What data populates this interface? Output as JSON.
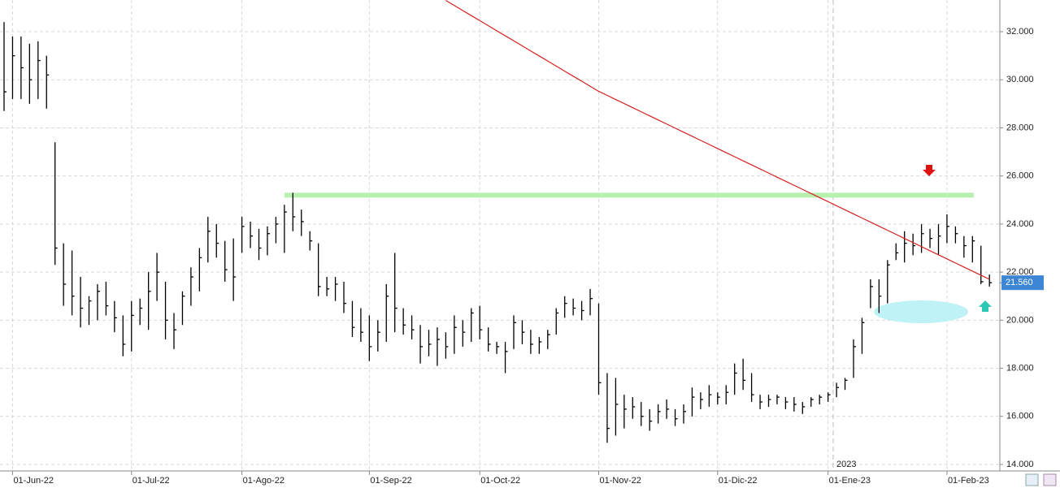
{
  "chart_data": {
    "type": "ohlc",
    "categories": [
      null,
      "01-Jun-22",
      null,
      null,
      null,
      null,
      null,
      null,
      null,
      null,
      null,
      null,
      null,
      null,
      null,
      "01-Jul-22",
      null,
      null,
      null,
      null,
      null,
      null,
      null,
      null,
      null,
      null,
      null,
      null,
      "01-Ago-22",
      null,
      null,
      null,
      null,
      null,
      null,
      null,
      null,
      null,
      null,
      null,
      null,
      null,
      null,
      "01-Sep-22",
      null,
      null,
      null,
      null,
      null,
      null,
      null,
      null,
      null,
      null,
      null,
      null,
      "01-Oct-22",
      null,
      null,
      null,
      null,
      null,
      null,
      null,
      null,
      null,
      null,
      null,
      null,
      null,
      "01-Nov-22",
      null,
      null,
      null,
      null,
      null,
      null,
      null,
      null,
      null,
      null,
      null,
      null,
      null,
      "01-Dic-22",
      null,
      null,
      null,
      null,
      null,
      null,
      null,
      null,
      null,
      null,
      null,
      null,
      "01-Ene-23",
      null,
      null,
      null,
      null,
      null,
      null,
      null,
      null,
      null,
      null,
      null,
      null,
      null,
      "01-Feb-23",
      null,
      null,
      null,
      null,
      null
    ],
    "high": [
      32400,
      31800,
      31800,
      31500,
      31600,
      31000,
      27400,
      23200,
      22900,
      21800,
      21000,
      21500,
      21600,
      20800,
      20200,
      20800,
      20900,
      22000,
      22800,
      21600,
      20300,
      21200,
      22200,
      23000,
      24300,
      24000,
      23300,
      23400,
      24300,
      24100,
      23800,
      23900,
      24300,
      24800,
      25300,
      24600,
      23700,
      23200,
      21800,
      21800,
      21600,
      20800,
      20500,
      20200,
      20000,
      21500,
      22800,
      20500,
      20200,
      19800,
      19600,
      19700,
      19500,
      20200,
      20000,
      20500,
      20600,
      19700,
      19100,
      19100,
      20200,
      20000,
      19600,
      19300,
      19600,
      20500,
      21000,
      20900,
      20800,
      21300,
      20700,
      17800,
      17600,
      16900,
      16800,
      16600,
      16300,
      16500,
      16700,
      16300,
      16500,
      17200,
      17000,
      17300,
      17000,
      17300,
      18200,
      18400,
      17800,
      16900,
      16900,
      16900,
      16800,
      16800,
      16600,
      16800,
      16900,
      17000,
      17400,
      17600,
      19200,
      20100,
      21700,
      21700,
      22500,
      23200,
      23700,
      23600,
      24000,
      23800,
      24000,
      24400,
      23900,
      23500,
      23500,
      23100,
      21900
    ],
    "low": [
      28700,
      29200,
      29200,
      29000,
      29200,
      28800,
      22300,
      20600,
      20200,
      19700,
      19800,
      20000,
      20200,
      19500,
      18500,
      18700,
      19800,
      19600,
      20800,
      19200,
      18800,
      19800,
      20600,
      21200,
      22400,
      22600,
      21600,
      20800,
      22800,
      23000,
      22500,
      22700,
      23200,
      22800,
      23700,
      23500,
      22900,
      21000,
      21000,
      20800,
      20300,
      19300,
      19100,
      18300,
      18700,
      19100,
      19500,
      19400,
      19200,
      18200,
      18500,
      18100,
      18400,
      18600,
      18900,
      19100,
      19200,
      18700,
      18600,
      17800,
      18800,
      19000,
      18600,
      18600,
      18800,
      19400,
      20100,
      20200,
      20000,
      20200,
      16900,
      14900,
      15200,
      15500,
      15900,
      15600,
      15400,
      15700,
      15900,
      15600,
      15700,
      16000,
      16300,
      16400,
      16500,
      16500,
      16900,
      17100,
      16600,
      16300,
      16400,
      16500,
      16300,
      16200,
      16100,
      16400,
      16500,
      16600,
      16800,
      17100,
      17600,
      18600,
      20500,
      20300,
      20700,
      22500,
      22400,
      22700,
      22800,
      23000,
      22700,
      23200,
      23200,
      22600,
      22400,
      21500,
      21400
    ],
    "close": [
      29500,
      31000,
      30500,
      30000,
      30800,
      30200,
      23000,
      21500,
      21000,
      20500,
      20800,
      21200,
      20600,
      20100,
      19000,
      20200,
      20500,
      21200,
      22000,
      20000,
      19600,
      21000,
      21800,
      22600,
      23700,
      23200,
      22100,
      21800,
      23900,
      23500,
      23000,
      23600,
      24000,
      24500,
      24300,
      24100,
      23300,
      21400,
      21300,
      21500,
      20700,
      19700,
      19500,
      18900,
      19500,
      21000,
      20500,
      19800,
      19600,
      18900,
      19000,
      19200,
      18900,
      19700,
      19500,
      20300,
      19600,
      19000,
      18900,
      18700,
      19900,
      19500,
      19000,
      19100,
      19400,
      20300,
      20700,
      20500,
      20400,
      20900,
      17400,
      15500,
      16500,
      16300,
      16400,
      16000,
      15800,
      16200,
      16300,
      15900,
      16200,
      16800,
      16700,
      16900,
      16800,
      17000,
      17800,
      17500,
      16900,
      16600,
      16700,
      16800,
      16600,
      16500,
      16400,
      16700,
      16800,
      16900,
      17200,
      17500,
      18900,
      19900,
      21400,
      21000,
      22300,
      22800,
      23200,
      23100,
      23600,
      23400,
      23500,
      23900,
      23600,
      23100,
      23300,
      21600,
      21560
    ],
    "moving_average": {
      "color": "#d42020",
      "values": [
        null,
        null,
        null,
        null,
        null,
        null,
        null,
        null,
        null,
        null,
        null,
        null,
        null,
        null,
        null,
        null,
        null,
        null,
        null,
        null,
        null,
        null,
        null,
        null,
        null,
        null,
        null,
        null,
        null,
        null,
        null,
        null,
        null,
        null,
        null,
        null,
        null,
        null,
        null,
        null,
        null,
        null,
        null,
        null,
        null,
        null,
        null,
        null,
        null,
        null,
        null,
        null,
        33300,
        33090,
        32880,
        32670,
        32460,
        32250,
        32040,
        31830,
        31620,
        31410,
        31200,
        30990,
        30780,
        30570,
        30360,
        30150,
        29940,
        29730,
        29520,
        29350,
        29180,
        29010,
        28840,
        28670,
        28500,
        28330,
        28160,
        27990,
        27820,
        27650,
        27480,
        27310,
        27140,
        26970,
        26800,
        26630,
        26460,
        26290,
        26120,
        25950,
        25780,
        25610,
        25440,
        25270,
        25100,
        24930,
        24760,
        24590,
        24420,
        24250,
        24080,
        23910,
        23740,
        23570,
        23400,
        23230,
        23060,
        22890,
        22720,
        22550,
        22380,
        22210,
        22040,
        21870,
        21700
      ]
    },
    "level": {
      "value": 25200,
      "color": "#b8f0b0"
    },
    "last_price": {
      "value": 21560,
      "label": "21.560",
      "color": "#3d86d6"
    },
    "year_marker": "2023",
    "ylim": [
      13730,
      33318
    ],
    "yticks": [
      {
        "value": 14000,
        "label": "14.000"
      },
      {
        "value": 16000,
        "label": "16.000"
      },
      {
        "value": 18000,
        "label": "18.000"
      },
      {
        "value": 20000,
        "label": "20.000"
      },
      {
        "value": 22000,
        "label": "22.000"
      },
      {
        "value": 24000,
        "label": "24.000"
      },
      {
        "value": 26000,
        "label": "26.000"
      },
      {
        "value": 28000,
        "label": "28.000"
      },
      {
        "value": 30000,
        "label": "30.000"
      },
      {
        "value": 32000,
        "label": "32.000"
      }
    ],
    "grid": true,
    "bar_color": "#000000"
  }
}
